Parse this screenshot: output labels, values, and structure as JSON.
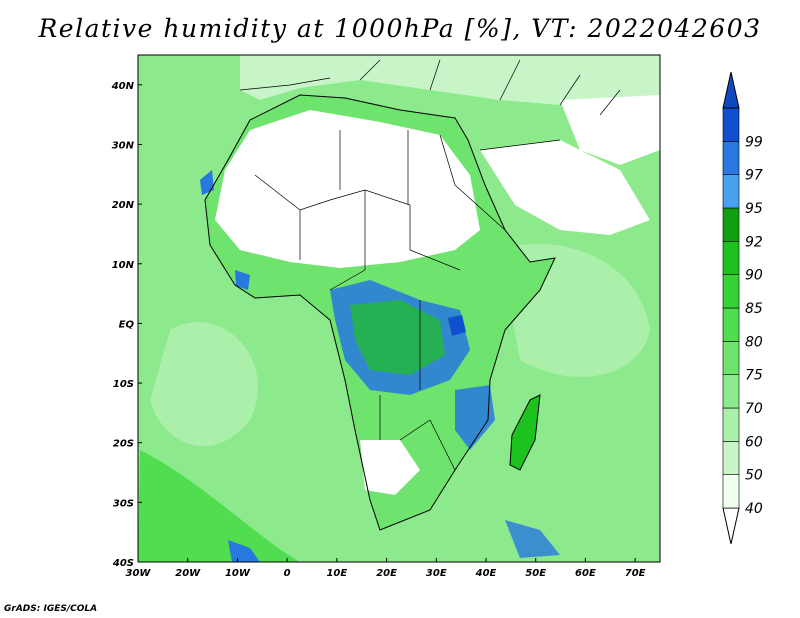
{
  "title": "Relative humidity at 1000hPa [%], VT: 2022042603",
  "credit": "GrADS: IGES/COLA",
  "map": {
    "region": "Africa",
    "projection": "latlon",
    "lon_range": [
      -30,
      75
    ],
    "lat_range": [
      -40,
      45
    ],
    "lon_ticks": [
      {
        "value": -30,
        "label": "30W"
      },
      {
        "value": -20,
        "label": "20W"
      },
      {
        "value": -10,
        "label": "10W"
      },
      {
        "value": 0,
        "label": "0"
      },
      {
        "value": 10,
        "label": "10E"
      },
      {
        "value": 20,
        "label": "20E"
      },
      {
        "value": 30,
        "label": "30E"
      },
      {
        "value": 40,
        "label": "40E"
      },
      {
        "value": 50,
        "label": "50E"
      },
      {
        "value": 60,
        "label": "60E"
      },
      {
        "value": 70,
        "label": "70E"
      }
    ],
    "lat_ticks": [
      {
        "value": 40,
        "label": "40N"
      },
      {
        "value": 30,
        "label": "30N"
      },
      {
        "value": 20,
        "label": "20N"
      },
      {
        "value": 10,
        "label": "10N"
      },
      {
        "value": 0,
        "label": "EQ"
      },
      {
        "value": -10,
        "label": "10S"
      },
      {
        "value": -20,
        "label": "20S"
      },
      {
        "value": -30,
        "label": "30S"
      },
      {
        "value": -40,
        "label": "40S"
      }
    ]
  },
  "colorbar": {
    "levels": [
      "40",
      "50",
      "60",
      "70",
      "75",
      "80",
      "85",
      "90",
      "92",
      "95",
      "97",
      "99"
    ],
    "colors": [
      "#f0fff0",
      "#c8f5c8",
      "#aaefaa",
      "#8ce98c",
      "#6ee36e",
      "#50dd50",
      "#36d236",
      "#1ec21e",
      "#0fa00f",
      "#4aa0f0",
      "#2878e0",
      "#1050d0"
    ],
    "under_color": "#ffffff",
    "over_color": "#1048c0"
  },
  "chart_data": {
    "type": "heatmap",
    "variable": "Relative humidity at 1000hPa",
    "units": "%",
    "valid_time": "2022042603",
    "x_range": [
      -30,
      75
    ],
    "y_range": [
      -40,
      45
    ]
  }
}
